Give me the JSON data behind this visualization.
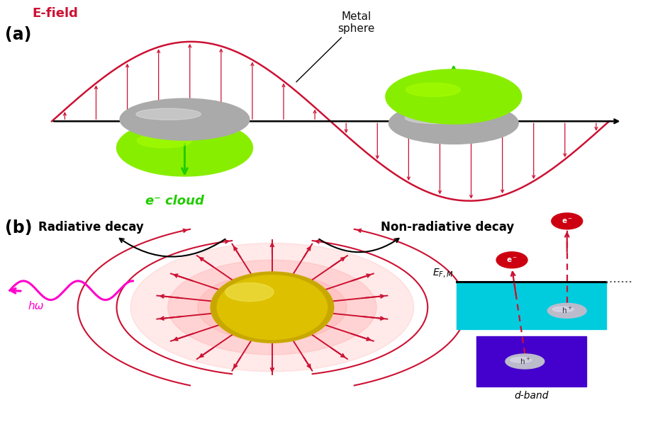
{
  "bg_color": "#ffffff",
  "panel_a_label": "(a)",
  "panel_b_label": "(b)",
  "efield_label": "E-field",
  "metal_sphere_label": "Metal\nsphere",
  "ecloud_label": "e⁻ cloud",
  "radiative_label": "Radiative decay",
  "nonradiative_label": "Non-radiative decay",
  "hbar_omega_label": "hω",
  "dband_label": "d-band",
  "red_color": "#cc0000",
  "crimson_color": "#cc1133",
  "green_color": "#88ee00",
  "green_bright": "#aaff00",
  "gray_metal": "#aaaaaa",
  "gray_light": "#dddddd",
  "yellow_dark": "#c8a800",
  "yellow_mid": "#ddc000",
  "yellow_bright": "#eedd44",
  "magenta_color": "#ff00cc",
  "cyan_color": "#00ccdd",
  "dark_blue_color": "#4400cc",
  "pink_glow": "#ffdddd",
  "pink_glow2": "#ffeeee"
}
